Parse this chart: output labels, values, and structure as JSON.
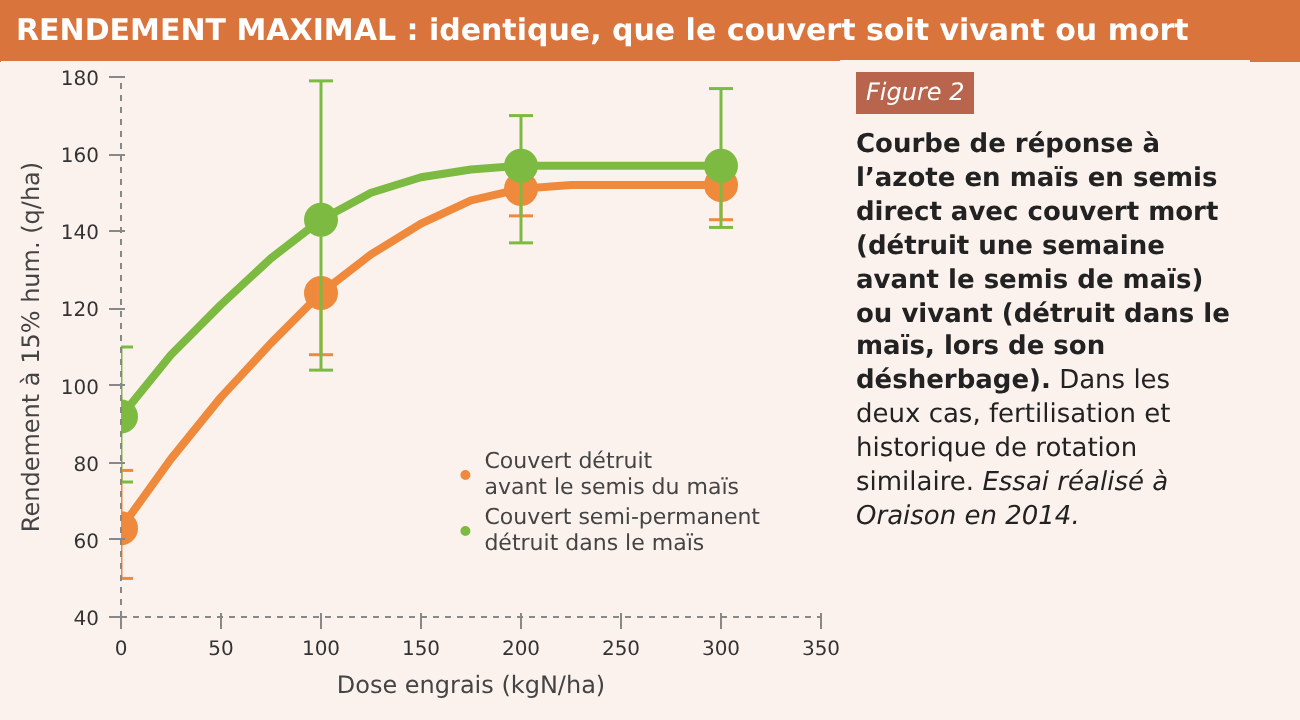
{
  "chart_data": {
    "type": "line",
    "title": "RENDEMENT MAXIMAL : identique, que le couvert soit vivant ou mort",
    "xlabel": "Dose engrais (kgN/ha)",
    "ylabel": "Rendement à 15% hum. (q/ha)",
    "x": [
      0,
      100,
      200,
      300
    ],
    "series": [
      {
        "color": "#ef8a3d",
        "x": [
          0,
          25,
          50,
          75,
          100,
          125,
          150,
          175,
          200,
          225,
          250,
          275,
          300
        ],
        "values": [
          63,
          81,
          97,
          111,
          124,
          134,
          142,
          148,
          151,
          152,
          152,
          152,
          152
        ],
        "marker": "none"
      },
      {
        "color": "#7dba42",
        "x": [
          0,
          25,
          50,
          75,
          100,
          125,
          150,
          175,
          200,
          225,
          250,
          275,
          300
        ],
        "values": [
          92,
          108,
          121,
          133,
          143,
          150,
          154,
          156,
          157,
          157,
          157,
          157,
          157
        ],
        "marker": "none"
      },
      {
        "type": "scatter",
        "name": "Couvert détruit\navant le semis du maïs",
        "color": "#ef8a3d",
        "values": [
          63,
          124,
          151,
          152
        ],
        "errors": [
          [
            50,
            78
          ],
          [
            108,
            124
          ],
          [
            144,
            151
          ],
          [
            143,
            152
          ]
        ]
      },
      {
        "type": "scatter",
        "name": "Couvert semi-permanent\ndétruit dans le maïs",
        "color": "#7dba42",
        "values": [
          92,
          143,
          157,
          157
        ],
        "errors": [
          [
            75,
            110
          ],
          [
            104,
            179
          ],
          [
            137,
            170
          ],
          [
            141,
            177
          ]
        ]
      }
    ],
    "xlim": [
      0,
      350
    ],
    "xticks": [
      0,
      50,
      100,
      150,
      200,
      250,
      300,
      350
    ],
    "ylim": [
      40,
      180
    ],
    "yticks": [
      40,
      60,
      80,
      100,
      120,
      140,
      160,
      180
    ],
    "marker": "circle",
    "legend": "bottom right",
    "grid": false,
    "annotations": [
      "Figure 2",
      "Courbe de réponse à l’azote en maïs en semis direct avec couvert mort (détruit une semaine avant le semis de maïs) ou vivant (détruit dans le maïs, lors de son désherbage).",
      "Dans les deux cas, fertilisation et historique de rotation similaire.",
      "Essai réalisé à Oraison en 2014."
    ]
  }
}
